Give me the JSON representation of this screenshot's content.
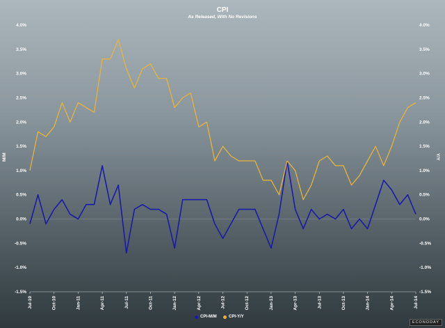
{
  "branding": "ECONODAY",
  "chart_data": {
    "type": "line",
    "title": "CPI",
    "subtitle": "As Released, With No Revisions",
    "ylabel_left": "M/M",
    "ylabel_right": "Y/Y",
    "ylim": [
      -1.5,
      4.0
    ],
    "yticks_left": [
      "4.0%",
      "3.5%",
      "3.0%",
      "2.5%",
      "2.0%",
      "1.5%",
      "1.0%",
      "0.5%",
      "0.0%",
      "-0.5%",
      "-1.0%",
      "-1.5%"
    ],
    "yticks_right": [
      "4.0%",
      "3.5%",
      "3.0%",
      "2.5%",
      "2.0%",
      "1.5%",
      "1.0%",
      "0.5%",
      "0.0%",
      "-0.5%",
      "-1.0%",
      "-1.5%"
    ],
    "ytick_values": [
      4.0,
      3.5,
      3.0,
      2.5,
      2.0,
      1.5,
      1.0,
      0.5,
      0.0,
      -0.5,
      -1.0,
      -1.5
    ],
    "x_tick_labels": [
      {
        "index": 0,
        "label": "Jul-10"
      },
      {
        "index": 3,
        "label": "Oct-10"
      },
      {
        "index": 6,
        "label": "Jan-11"
      },
      {
        "index": 9,
        "label": "Apr-11"
      },
      {
        "index": 12,
        "label": "Jul-11"
      },
      {
        "index": 15,
        "label": "Oct-11"
      },
      {
        "index": 18,
        "label": "Jan-12"
      },
      {
        "index": 21,
        "label": "Apr-12"
      },
      {
        "index": 24,
        "label": "Jul-12"
      },
      {
        "index": 27,
        "label": "Oct-12"
      },
      {
        "index": 30,
        "label": "Jan-13"
      },
      {
        "index": 33,
        "label": "Apr-13"
      },
      {
        "index": 36,
        "label": "Jul-13"
      },
      {
        "index": 39,
        "label": "Oct-13"
      },
      {
        "index": 42,
        "label": "Jan-14"
      },
      {
        "index": 45,
        "label": "Apr-14"
      },
      {
        "index": 48,
        "label": "Jul-14"
      }
    ],
    "series": [
      {
        "name": "CPI-M/M",
        "color": "#1a1aa6",
        "values": [
          -0.1,
          0.5,
          -0.1,
          0.2,
          0.4,
          0.1,
          0.0,
          0.3,
          0.3,
          1.1,
          0.3,
          0.7,
          -0.7,
          0.2,
          0.3,
          0.2,
          0.2,
          0.1,
          -0.6,
          0.4,
          0.4,
          0.4,
          0.4,
          -0.1,
          -0.4,
          -0.1,
          0.2,
          0.2,
          0.2,
          -0.2,
          -0.6,
          0.1,
          1.2,
          0.2,
          -0.2,
          0.2,
          0.0,
          0.1,
          0.0,
          0.2,
          -0.2,
          0.0,
          -0.2,
          0.3,
          0.8,
          0.6,
          0.3,
          0.5,
          0.1
        ]
      },
      {
        "name": "CPI-Y/Y",
        "color": "#e8b33a",
        "values": [
          1.0,
          1.8,
          1.7,
          1.9,
          2.4,
          2.0,
          2.4,
          2.3,
          2.2,
          3.3,
          3.3,
          3.7,
          3.1,
          2.7,
          3.1,
          3.2,
          2.9,
          2.9,
          2.3,
          2.5,
          2.6,
          1.9,
          2.0,
          1.2,
          1.5,
          1.3,
          1.2,
          1.2,
          1.2,
          0.8,
          0.8,
          0.5,
          1.2,
          1.0,
          0.4,
          0.7,
          1.2,
          1.3,
          1.1,
          1.1,
          0.7,
          0.9,
          1.2,
          1.5,
          1.1,
          1.5,
          2.0,
          2.3,
          2.4
        ]
      }
    ]
  }
}
